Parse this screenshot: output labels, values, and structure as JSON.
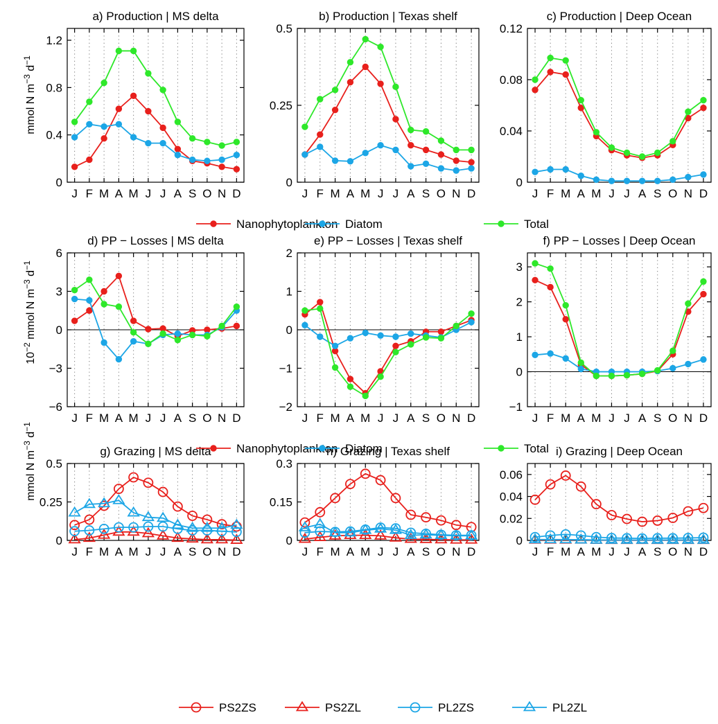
{
  "chart_data": [
    {
      "type": "line",
      "title": "a) Production | MS delta",
      "ylabel": "mmol N m^-3 d^-1",
      "ylim": [
        0,
        1.3
      ],
      "yticks": [
        "0",
        "0.4",
        "0.8",
        "1.2"
      ],
      "categories": [
        "J",
        "F",
        "M",
        "A",
        "M",
        "J",
        "J",
        "A",
        "S",
        "O",
        "N",
        "D"
      ],
      "series": [
        {
          "name": "Nanophytoplankton",
          "values": [
            0.13,
            0.19,
            0.37,
            0.62,
            0.73,
            0.6,
            0.46,
            0.28,
            0.18,
            0.16,
            0.13,
            0.11
          ]
        },
        {
          "name": "Diatom",
          "values": [
            0.38,
            0.49,
            0.47,
            0.49,
            0.38,
            0.33,
            0.33,
            0.23,
            0.19,
            0.18,
            0.19,
            0.23
          ]
        },
        {
          "name": "Total",
          "values": [
            0.51,
            0.68,
            0.84,
            1.11,
            1.11,
            0.92,
            0.78,
            0.51,
            0.37,
            0.34,
            0.31,
            0.34
          ]
        }
      ]
    },
    {
      "type": "line",
      "title": "b) Production | Texas shelf",
      "ylim": [
        0,
        0.5
      ],
      "yticks": [
        "0",
        "0.25",
        "0.5"
      ],
      "categories": [
        "J",
        "F",
        "M",
        "A",
        "M",
        "J",
        "J",
        "A",
        "S",
        "O",
        "N",
        "D"
      ],
      "series": [
        {
          "name": "Nanophytoplankton",
          "values": [
            0.09,
            0.155,
            0.235,
            0.325,
            0.375,
            0.32,
            0.205,
            0.12,
            0.105,
            0.09,
            0.07,
            0.065
          ]
        },
        {
          "name": "Diatom",
          "values": [
            0.09,
            0.115,
            0.07,
            0.068,
            0.095,
            0.12,
            0.105,
            0.052,
            0.06,
            0.045,
            0.038,
            0.045
          ]
        },
        {
          "name": "Total",
          "values": [
            0.18,
            0.27,
            0.3,
            0.39,
            0.465,
            0.44,
            0.31,
            0.17,
            0.165,
            0.135,
            0.105,
            0.105
          ]
        }
      ]
    },
    {
      "type": "line",
      "title": "c) Production | Deep Ocean",
      "ylim": [
        0,
        0.12
      ],
      "yticks": [
        "0",
        "0.04",
        "0.08",
        "0.12"
      ],
      "categories": [
        "J",
        "F",
        "M",
        "A",
        "M",
        "J",
        "J",
        "A",
        "S",
        "O",
        "N",
        "D"
      ],
      "series": [
        {
          "name": "Nanophytoplankton",
          "values": [
            0.072,
            0.086,
            0.084,
            0.058,
            0.036,
            0.025,
            0.021,
            0.019,
            0.021,
            0.029,
            0.05,
            0.058
          ]
        },
        {
          "name": "Diatom",
          "values": [
            0.008,
            0.01,
            0.01,
            0.005,
            0.002,
            0.001,
            0.001,
            0.001,
            0.001,
            0.002,
            0.004,
            0.006
          ]
        },
        {
          "name": "Total",
          "values": [
            0.08,
            0.097,
            0.095,
            0.064,
            0.039,
            0.027,
            0.023,
            0.02,
            0.023,
            0.032,
            0.055,
            0.064
          ]
        }
      ]
    },
    {
      "type": "line",
      "title": "d) PP − Losses | MS delta",
      "ylabel": "10^-2 mmol N m^-3 d^-1",
      "ylim": [
        -6,
        6
      ],
      "yticks": [
        "−6",
        "−3",
        "0",
        "3",
        "6"
      ],
      "categories": [
        "J",
        "F",
        "M",
        "A",
        "M",
        "J",
        "J",
        "A",
        "S",
        "O",
        "N",
        "D"
      ],
      "series": [
        {
          "name": "Nanophytoplankton",
          "values": [
            0.7,
            1.5,
            3.0,
            4.2,
            0.7,
            0.05,
            0.1,
            -0.5,
            -0.05,
            0.0,
            0.1,
            0.3
          ]
        },
        {
          "name": "Diatom",
          "values": [
            2.4,
            2.3,
            -1.0,
            -2.3,
            -0.9,
            -1.1,
            -0.4,
            -0.3,
            -0.4,
            -0.4,
            0.2,
            1.5
          ]
        },
        {
          "name": "Total",
          "values": [
            3.1,
            3.9,
            2.0,
            1.8,
            -0.2,
            -1.1,
            -0.3,
            -0.8,
            -0.4,
            -0.5,
            0.3,
            1.8
          ]
        }
      ]
    },
    {
      "type": "line",
      "title": "e) PP − Losses | Texas shelf",
      "ylim": [
        -2,
        2
      ],
      "yticks": [
        "−2",
        "−1",
        "0",
        "1",
        "2"
      ],
      "categories": [
        "J",
        "F",
        "M",
        "A",
        "M",
        "J",
        "J",
        "A",
        "S",
        "O",
        "N",
        "D"
      ],
      "series": [
        {
          "name": "Nanophytoplankton",
          "values": [
            0.4,
            0.72,
            -0.55,
            -1.28,
            -1.65,
            -1.08,
            -0.42,
            -0.3,
            -0.05,
            -0.05,
            0.1,
            0.25
          ]
        },
        {
          "name": "Diatom",
          "values": [
            0.12,
            -0.18,
            -0.42,
            -0.22,
            -0.08,
            -0.15,
            -0.18,
            -0.1,
            -0.15,
            -0.2,
            0.0,
            0.2
          ]
        },
        {
          "name": "Total",
          "values": [
            0.5,
            0.55,
            -0.98,
            -1.48,
            -1.72,
            -1.22,
            -0.58,
            -0.38,
            -0.2,
            -0.22,
            0.1,
            0.42
          ]
        }
      ]
    },
    {
      "type": "line",
      "title": "f) PP − Losses | Deep Ocean",
      "ylim": [
        -1,
        3.4
      ],
      "yticks": [
        "−1",
        "0",
        "1",
        "2",
        "3"
      ],
      "categories": [
        "J",
        "F",
        "M",
        "A",
        "M",
        "J",
        "J",
        "A",
        "S",
        "O",
        "N",
        "D"
      ],
      "series": [
        {
          "name": "Nanophytoplankton",
          "values": [
            2.62,
            2.42,
            1.5,
            0.2,
            -0.12,
            -0.12,
            -0.1,
            -0.06,
            0.02,
            0.5,
            1.72,
            2.22
          ]
        },
        {
          "name": "Diatom",
          "values": [
            0.48,
            0.52,
            0.38,
            0.08,
            0.0,
            0.0,
            0.0,
            0.0,
            0.02,
            0.1,
            0.22,
            0.35
          ]
        },
        {
          "name": "Total",
          "values": [
            3.1,
            2.95,
            1.9,
            0.26,
            -0.12,
            -0.12,
            -0.1,
            -0.06,
            0.04,
            0.6,
            1.95,
            2.58
          ]
        }
      ]
    },
    {
      "type": "line",
      "title": "g) Grazing | MS delta",
      "ylabel": "mmol N m^-3 d^-1",
      "ylim": [
        0,
        0.5
      ],
      "yticks": [
        "0",
        "0.25",
        "0.5"
      ],
      "categories": [
        "J",
        "F",
        "M",
        "A",
        "M",
        "J",
        "J",
        "A",
        "S",
        "O",
        "N",
        "D"
      ],
      "series": [
        {
          "name": "PS2ZS",
          "values": [
            0.1,
            0.135,
            0.225,
            0.335,
            0.41,
            0.375,
            0.315,
            0.22,
            0.16,
            0.135,
            0.105,
            0.09
          ]
        },
        {
          "name": "PS2ZL",
          "values": [
            0.005,
            0.015,
            0.035,
            0.055,
            0.055,
            0.045,
            0.03,
            0.015,
            0.01,
            0.005,
            0.005,
            0.002
          ]
        },
        {
          "name": "PL2ZS",
          "values": [
            0.06,
            0.065,
            0.075,
            0.085,
            0.085,
            0.09,
            0.09,
            0.075,
            0.065,
            0.065,
            0.06,
            0.055
          ]
        },
        {
          "name": "PL2ZL",
          "values": [
            0.18,
            0.235,
            0.24,
            0.26,
            0.18,
            0.15,
            0.145,
            0.1,
            0.08,
            0.08,
            0.08,
            0.1
          ]
        }
      ]
    },
    {
      "type": "line",
      "title": "h) Grazing | Texas shelf",
      "ylim": [
        0,
        0.3
      ],
      "yticks": [
        "0",
        "0.15",
        "0.3"
      ],
      "categories": [
        "J",
        "F",
        "M",
        "A",
        "M",
        "J",
        "J",
        "A",
        "S",
        "O",
        "N",
        "D"
      ],
      "series": [
        {
          "name": "PS2ZS",
          "values": [
            0.07,
            0.11,
            0.165,
            0.22,
            0.26,
            0.235,
            0.165,
            0.1,
            0.09,
            0.078,
            0.06,
            0.052
          ]
        },
        {
          "name": "PS2ZL",
          "values": [
            0.005,
            0.012,
            0.018,
            0.02,
            0.02,
            0.018,
            0.01,
            0.005,
            0.004,
            0.003,
            0.002,
            0.002
          ]
        },
        {
          "name": "PL2ZS",
          "values": [
            0.03,
            0.035,
            0.033,
            0.035,
            0.042,
            0.05,
            0.047,
            0.03,
            0.026,
            0.022,
            0.02,
            0.02
          ]
        },
        {
          "name": "PL2ZL",
          "values": [
            0.05,
            0.063,
            0.03,
            0.03,
            0.04,
            0.045,
            0.04,
            0.02,
            0.022,
            0.02,
            0.018,
            0.018
          ]
        }
      ]
    },
    {
      "type": "line",
      "title": "i) Grazing | Deep Ocean",
      "ylim": [
        0,
        0.07
      ],
      "yticks": [
        "0",
        "0.02",
        "0.04",
        "0.06"
      ],
      "categories": [
        "J",
        "F",
        "M",
        "A",
        "M",
        "J",
        "J",
        "A",
        "S",
        "O",
        "N",
        "D"
      ],
      "series": [
        {
          "name": "PS2ZS",
          "values": [
            0.037,
            0.051,
            0.059,
            0.049,
            0.033,
            0.023,
            0.0195,
            0.017,
            0.018,
            0.0205,
            0.0265,
            0.0295
          ]
        },
        {
          "name": "PS2ZL",
          "values": [
            0.0005,
            0.0005,
            0.0005,
            0.0005,
            0.0003,
            0.0002,
            0.0002,
            0.0002,
            0.0002,
            0.0002,
            0.0002,
            0.0002
          ]
        },
        {
          "name": "PL2ZS",
          "values": [
            0.003,
            0.0045,
            0.0055,
            0.0045,
            0.003,
            0.0022,
            0.002,
            0.0018,
            0.002,
            0.002,
            0.0022,
            0.0025
          ]
        },
        {
          "name": "PL2ZL",
          "values": [
            0.0008,
            0.0008,
            0.0008,
            0.0006,
            0.0004,
            0.0003,
            0.0003,
            0.0003,
            0.0003,
            0.0003,
            0.0003,
            0.0003
          ]
        }
      ]
    }
  ],
  "legends": [
    {
      "items": [
        {
          "label": "Nanophytoplankton",
          "color": "#e8201c",
          "marker": "dot"
        },
        {
          "label": "Diatom",
          "color": "#1ca6e6",
          "marker": "dot"
        },
        {
          "label": "Total",
          "color": "#2ee82a",
          "marker": "dot"
        }
      ]
    },
    {
      "items": [
        {
          "label": "Nanophytoplankton",
          "color": "#e8201c",
          "marker": "dot"
        },
        {
          "label": "Diatom",
          "color": "#1ca6e6",
          "marker": "dot"
        },
        {
          "label": "Total",
          "color": "#2ee82a",
          "marker": "dot"
        }
      ]
    },
    {
      "items": [
        {
          "label": "PS2ZS",
          "color": "#e8201c",
          "marker": "circle"
        },
        {
          "label": "PS2ZL",
          "color": "#e8201c",
          "marker": "triangle"
        },
        {
          "label": "PL2ZS",
          "color": "#1ca6e6",
          "marker": "circle"
        },
        {
          "label": "PL2ZL",
          "color": "#1ca6e6",
          "marker": "triangle"
        }
      ]
    }
  ],
  "series_styles": {
    "Nanophytoplankton": {
      "color": "#e8201c",
      "marker": "dot"
    },
    "Diatom": {
      "color": "#1ca6e6",
      "marker": "dot"
    },
    "Total": {
      "color": "#2ee82a",
      "marker": "dot"
    },
    "PS2ZS": {
      "color": "#e8201c",
      "marker": "circle"
    },
    "PS2ZL": {
      "color": "#e8201c",
      "marker": "triangle"
    },
    "PL2ZS": {
      "color": "#1ca6e6",
      "marker": "circle"
    },
    "PL2ZL": {
      "color": "#1ca6e6",
      "marker": "triangle"
    }
  },
  "grid": "dotted vertical"
}
